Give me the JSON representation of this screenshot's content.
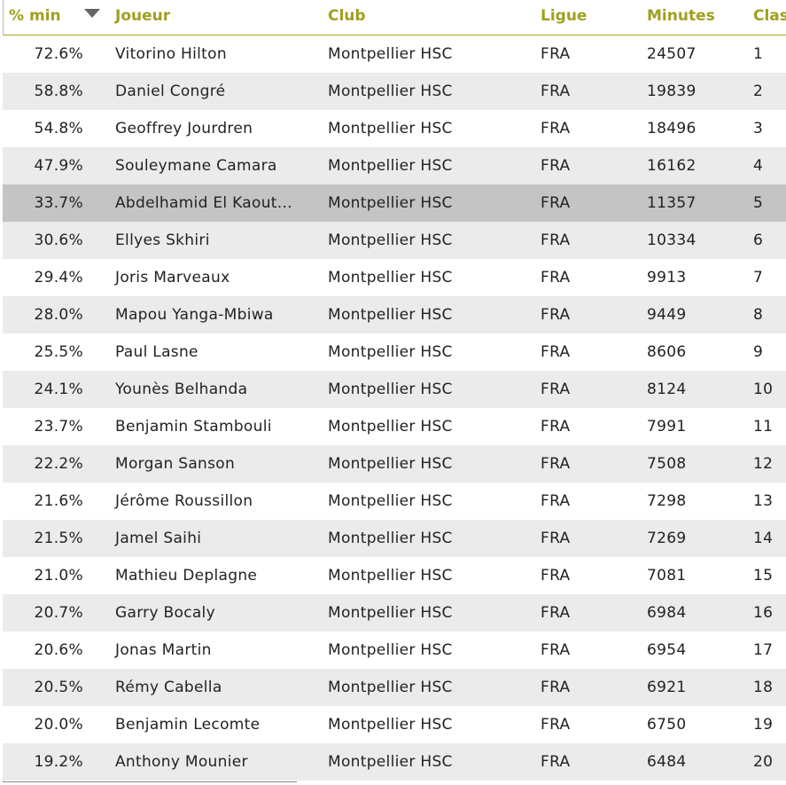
{
  "table": {
    "header": [
      "% min",
      "Joueur",
      "Club",
      "Ligue",
      "Minutes",
      "Clas"
    ],
    "rows": [
      [
        "72.6%",
        "Vitorino Hilton",
        "Montpellier HSC",
        "FRA",
        "24507",
        "1"
      ],
      [
        "58.8%",
        "Daniel Congré",
        "Montpellier HSC",
        "FRA",
        "19839",
        "2"
      ],
      [
        "54.8%",
        "Geoffrey Jourdren",
        "Montpellier HSC",
        "FRA",
        "18496",
        "3"
      ],
      [
        "47.9%",
        "Souleymane Camara",
        "Montpellier HSC",
        "FRA",
        "16162",
        "4"
      ],
      [
        "33.7%",
        "Abdelhamid El Kaout...",
        "Montpellier HSC",
        "FRA",
        "11357",
        "5"
      ],
      [
        "30.6%",
        "Ellyes Skhiri",
        "Montpellier HSC",
        "FRA",
        "10334",
        "6"
      ],
      [
        "29.4%",
        "Joris Marveaux",
        "Montpellier HSC",
        "FRA",
        "9913",
        "7"
      ],
      [
        "28.0%",
        "Mapou Yanga-Mbiwa",
        "Montpellier HSC",
        "FRA",
        "9449",
        "8"
      ],
      [
        "25.5%",
        "Paul Lasne",
        "Montpellier HSC",
        "FRA",
        "8606",
        "9"
      ],
      [
        "24.1%",
        "Younès Belhanda",
        "Montpellier HSC",
        "FRA",
        "8124",
        "10"
      ],
      [
        "23.7%",
        "Benjamin Stambouli",
        "Montpellier HSC",
        "FRA",
        "7991",
        "11"
      ],
      [
        "22.2%",
        "Morgan Sanson",
        "Montpellier HSC",
        "FRA",
        "7508",
        "12"
      ],
      [
        "21.6%",
        "Jérôme Roussillon",
        "Montpellier HSC",
        "FRA",
        "7298",
        "13"
      ],
      [
        "21.5%",
        "Jamel Saihi",
        "Montpellier HSC",
        "FRA",
        "7269",
        "14"
      ],
      [
        "21.0%",
        "Mathieu Deplagne",
        "Montpellier HSC",
        "FRA",
        "7081",
        "15"
      ],
      [
        "20.7%",
        "Garry Bocaly",
        "Montpellier HSC",
        "FRA",
        "6984",
        "16"
      ],
      [
        "20.6%",
        "Jonas Martin",
        "Montpellier HSC",
        "FRA",
        "6954",
        "17"
      ],
      [
        "20.5%",
        "Rémy Cabella",
        "Montpellier HSC",
        "FRA",
        "6921",
        "18"
      ],
      [
        "20.0%",
        "Benjamin Lecomte",
        "Montpellier HSC",
        "FRA",
        "6750",
        "19"
      ],
      [
        "19.2%",
        "Anthony Mounier",
        "Montpellier HSC",
        "FRA",
        "6484",
        "20"
      ]
    ]
  }
}
